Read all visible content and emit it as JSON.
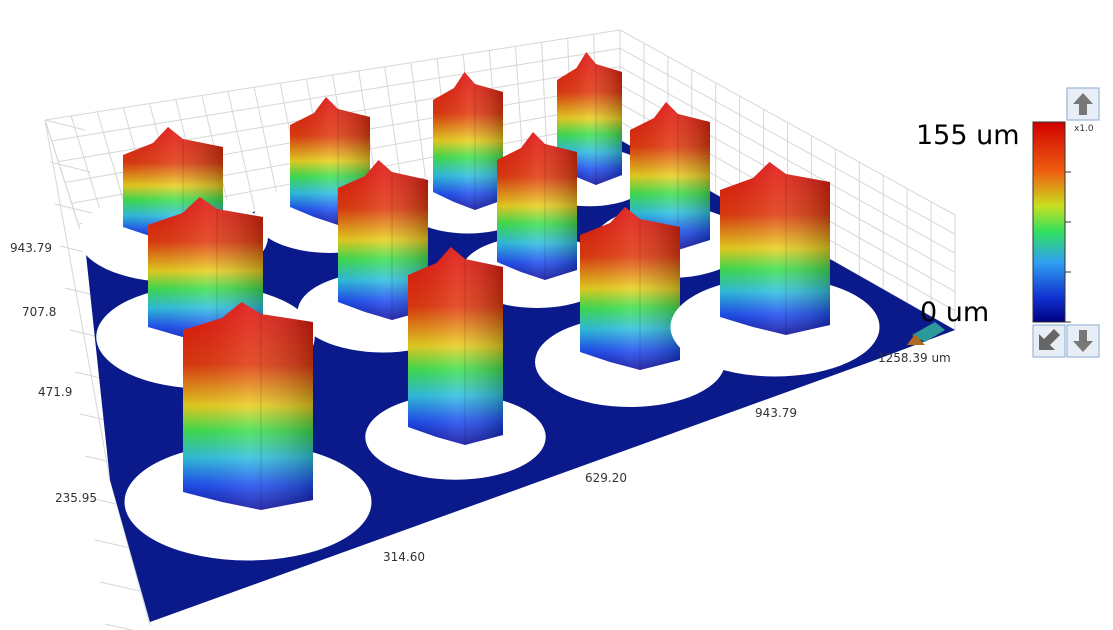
{
  "color_scale": {
    "max_label": "155 um",
    "min_label": "0 um",
    "zoom": "x1.0"
  },
  "y_axis_labels": [
    "943.79",
    "707.8",
    "471.9",
    "235.95"
  ],
  "x_axis_labels": [
    "314.60",
    "629.20",
    "943.79",
    "1258.39 um"
  ]
}
